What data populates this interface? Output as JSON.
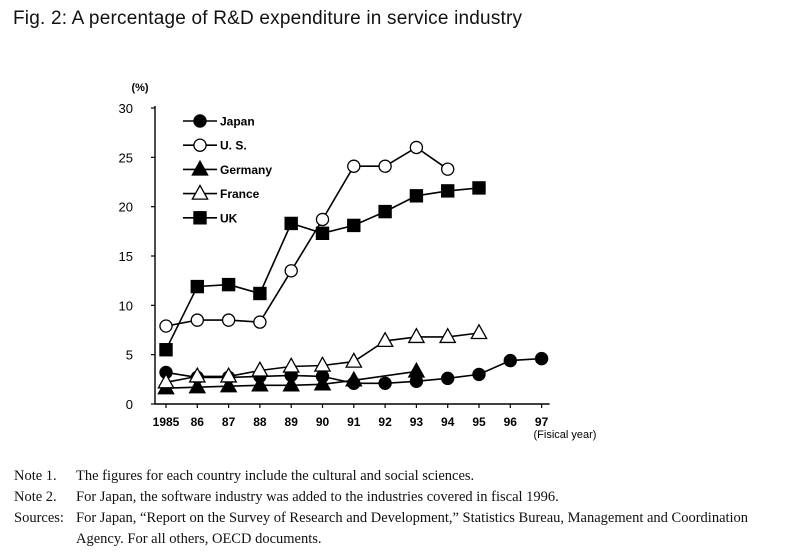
{
  "figure": {
    "title": "Fig. 2:  A percentage of R&D expenditure in service industry"
  },
  "chart_data": {
    "type": "line",
    "y_unit_label": "(%)",
    "x_axis_note": "(Fisical year)",
    "ylim": [
      0,
      30
    ],
    "y_ticks": [
      0,
      5,
      10,
      15,
      20,
      25,
      30
    ],
    "x": [
      1985,
      1986,
      1987,
      1988,
      1989,
      1990,
      1991,
      1992,
      1993,
      1994,
      1995,
      1996,
      1997
    ],
    "x_tick_labels": [
      "1985",
      "86",
      "87",
      "88",
      "89",
      "90",
      "91",
      "92",
      "93",
      "94",
      "95",
      "96",
      "97"
    ],
    "legend_position": "top-left",
    "series": [
      {
        "name": "Japan",
        "marker": "filled-circle",
        "points": [
          [
            1985,
            3.2
          ],
          [
            1986,
            2.7
          ],
          [
            1987,
            2.7
          ],
          [
            1988,
            2.8
          ],
          [
            1989,
            2.9
          ],
          [
            1990,
            2.8
          ],
          [
            1991,
            2.1
          ],
          [
            1992,
            2.1
          ],
          [
            1993,
            2.3
          ],
          [
            1994,
            2.6
          ],
          [
            1995,
            3.0
          ],
          [
            1996,
            4.4
          ],
          [
            1997,
            4.6
          ]
        ]
      },
      {
        "name": "U. S.",
        "marker": "open-circle",
        "points": [
          [
            1985,
            7.9
          ],
          [
            1986,
            8.5
          ],
          [
            1987,
            8.5
          ],
          [
            1988,
            8.3
          ],
          [
            1989,
            13.5
          ],
          [
            1990,
            18.7
          ],
          [
            1991,
            24.1
          ],
          [
            1992,
            24.1
          ],
          [
            1993,
            26.0
          ],
          [
            1994,
            23.8
          ]
        ]
      },
      {
        "name": "Germany",
        "marker": "filled-triangle",
        "points": [
          [
            1985,
            1.6
          ],
          [
            1986,
            1.7
          ],
          [
            1987,
            1.8
          ],
          [
            1988,
            1.9
          ],
          [
            1989,
            1.9
          ],
          [
            1990,
            2.0
          ],
          [
            1991,
            2.4
          ],
          [
            1993,
            3.3
          ]
        ]
      },
      {
        "name": "France",
        "marker": "open-triangle",
        "points": [
          [
            1985,
            2.2
          ],
          [
            1986,
            2.8
          ],
          [
            1987,
            2.8
          ],
          [
            1988,
            3.4
          ],
          [
            1989,
            3.8
          ],
          [
            1990,
            3.9
          ],
          [
            1991,
            4.3
          ],
          [
            1992,
            6.4
          ],
          [
            1993,
            6.8
          ],
          [
            1994,
            6.8
          ],
          [
            1995,
            7.2
          ]
        ]
      },
      {
        "name": "UK",
        "marker": "filled-square",
        "points": [
          [
            1985,
            5.5
          ],
          [
            1986,
            11.9
          ],
          [
            1987,
            12.1
          ],
          [
            1988,
            11.2
          ],
          [
            1989,
            18.3
          ],
          [
            1990,
            17.3
          ],
          [
            1991,
            18.1
          ],
          [
            1992,
            19.5
          ],
          [
            1993,
            21.1
          ],
          [
            1994,
            21.6
          ],
          [
            1995,
            21.9
          ]
        ]
      }
    ]
  },
  "notes": [
    {
      "label": "Note 1.",
      "text": "The figures for each country include the cultural and social sciences."
    },
    {
      "label": "Note 2.",
      "text": "For Japan, the software industry was added to the industries covered in fiscal 1996."
    },
    {
      "label": "Sources:",
      "text": "For Japan, “Report on the Survey of Research and Development,” Statistics Bureau, Management and Coordination Agency. For all others, OECD documents."
    }
  ]
}
